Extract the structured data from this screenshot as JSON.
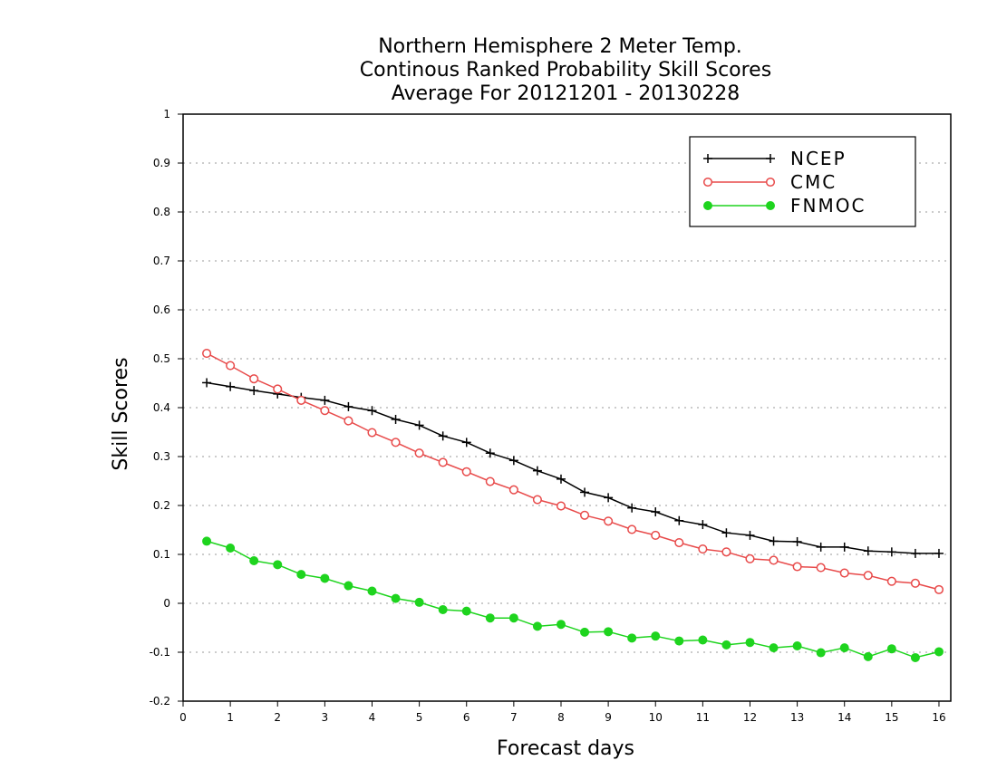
{
  "chart_data": {
    "type": "line",
    "title_lines": [
      "Northern Hemisphere 2 Meter Temp.",
      "Continous Ranked Probability Skill Scores",
      "Average For 20121201 - 20130228"
    ],
    "xlabel": "Forecast days",
    "ylabel": "Skill Scores",
    "xlim": [
      0,
      16.25
    ],
    "ylim": [
      -0.2,
      1
    ],
    "xticks": [
      0,
      1,
      2,
      3,
      4,
      5,
      6,
      7,
      8,
      9,
      10,
      11,
      12,
      13,
      14,
      15,
      16
    ],
    "yticks": [
      -0.2,
      -0.1,
      0,
      0.1,
      0.2,
      0.3,
      0.4,
      0.5,
      0.6,
      0.7,
      0.8,
      0.9,
      1
    ],
    "ytick_labels": [
      "-0.2",
      "-0.1",
      "0",
      "0.1",
      "0.2",
      "0.3",
      "0.4",
      "0.5",
      "0.6",
      "0.7",
      "0.8",
      "0.9",
      "1"
    ],
    "grid": "horizontal dotted",
    "legend_position": "top-right",
    "x": [
      0.5,
      1,
      1.5,
      2,
      2.5,
      3,
      3.5,
      4,
      4.5,
      5,
      5.5,
      6,
      6.5,
      7,
      7.5,
      8,
      8.5,
      9,
      9.5,
      10,
      10.5,
      11,
      11.5,
      12,
      12.5,
      13,
      13.5,
      14,
      14.5,
      15,
      15.5,
      16
    ],
    "series": [
      {
        "name": "NCEP",
        "color": "#000000",
        "marker": "plus",
        "values": [
          0.451,
          0.443,
          0.435,
          0.428,
          0.421,
          0.415,
          0.402,
          0.394,
          0.376,
          0.364,
          0.342,
          0.329,
          0.307,
          0.292,
          0.271,
          0.254,
          0.227,
          0.216,
          0.195,
          0.187,
          0.169,
          0.161,
          0.144,
          0.139,
          0.127,
          0.126,
          0.115,
          0.115,
          0.107,
          0.105,
          0.102,
          0.102
        ]
      },
      {
        "name": "CMC",
        "color": "#e84a4a",
        "marker": "open-circle",
        "values": [
          0.511,
          0.486,
          0.459,
          0.438,
          0.415,
          0.394,
          0.373,
          0.349,
          0.329,
          0.307,
          0.288,
          0.269,
          0.249,
          0.232,
          0.212,
          0.199,
          0.18,
          0.168,
          0.151,
          0.139,
          0.124,
          0.111,
          0.105,
          0.091,
          0.088,
          0.075,
          0.073,
          0.062,
          0.057,
          0.045,
          0.041,
          0.028
        ]
      },
      {
        "name": "FNMOC",
        "color": "#1ed41e",
        "marker": "filled-circle",
        "values": [
          0.127,
          0.113,
          0.087,
          0.079,
          0.059,
          0.051,
          0.036,
          0.025,
          0.01,
          0.002,
          -0.013,
          -0.016,
          -0.03,
          -0.03,
          -0.047,
          -0.043,
          -0.059,
          -0.058,
          -0.071,
          -0.067,
          -0.077,
          -0.075,
          -0.085,
          -0.08,
          -0.091,
          -0.087,
          -0.101,
          -0.091,
          -0.109,
          -0.093,
          -0.111,
          -0.099
        ]
      }
    ]
  }
}
